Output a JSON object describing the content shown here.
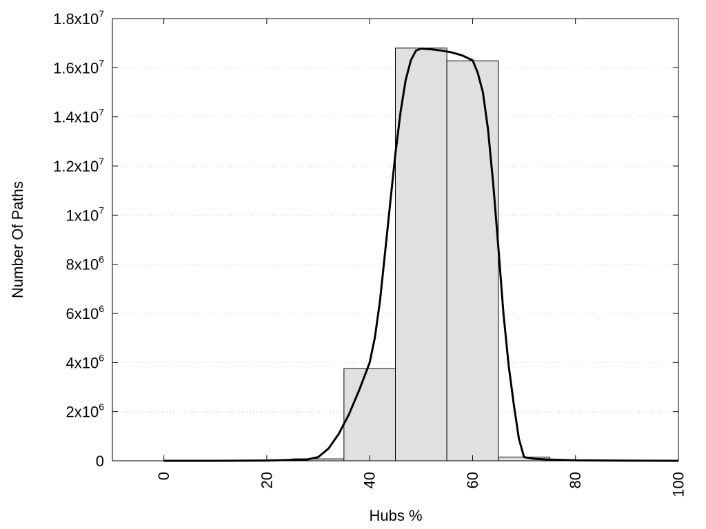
{
  "chart_data": {
    "type": "bar",
    "title": "",
    "xlabel": "Hubs %",
    "ylabel": "Number Of Paths",
    "xlim": [
      -10,
      100
    ],
    "ylim": [
      0,
      18000000
    ],
    "grid": "horizontal-dotted",
    "x_ticks": [
      {
        "value": 0,
        "label": "0"
      },
      {
        "value": 20,
        "label": "20"
      },
      {
        "value": 40,
        "label": "40"
      },
      {
        "value": 60,
        "label": "60"
      },
      {
        "value": 80,
        "label": "80"
      },
      {
        "value": 100,
        "label": "100"
      }
    ],
    "y_ticks": [
      {
        "value": 0,
        "mant": "0",
        "exp": ""
      },
      {
        "value": 2000000,
        "mant": "2x10",
        "exp": "6"
      },
      {
        "value": 4000000,
        "mant": "4x10",
        "exp": "6"
      },
      {
        "value": 6000000,
        "mant": "6x10",
        "exp": "6"
      },
      {
        "value": 8000000,
        "mant": "8x10",
        "exp": "6"
      },
      {
        "value": 10000000,
        "mant": "1x10",
        "exp": "7"
      },
      {
        "value": 12000000,
        "mant": "1.2x10",
        "exp": "7"
      },
      {
        "value": 14000000,
        "mant": "1.4x10",
        "exp": "7"
      },
      {
        "value": 16000000,
        "mant": "1.6x10",
        "exp": "7"
      },
      {
        "value": 18000000,
        "mant": "1.8x10",
        "exp": "7"
      }
    ],
    "bars": [
      {
        "x0": -5,
        "x1": 5,
        "value": 0
      },
      {
        "x0": 5,
        "x1": 15,
        "value": 0
      },
      {
        "x0": 15,
        "x1": 25,
        "value": 5000
      },
      {
        "x0": 25,
        "x1": 35,
        "value": 80000
      },
      {
        "x0": 35,
        "x1": 45,
        "value": 3750000
      },
      {
        "x0": 45,
        "x1": 55,
        "value": 16800000
      },
      {
        "x0": 55,
        "x1": 65,
        "value": 16280000
      },
      {
        "x0": 65,
        "x1": 75,
        "value": 150000
      },
      {
        "x0": 75,
        "x1": 85,
        "value": 5000
      },
      {
        "x0": 85,
        "x1": 95,
        "value": 0
      }
    ],
    "bar_fill": "#e0e0e0",
    "bar_stroke": "#000000",
    "curve_color": "#000000",
    "curve": [
      [
        0,
        0
      ],
      [
        10,
        0
      ],
      [
        20,
        10000
      ],
      [
        25,
        40000
      ],
      [
        28,
        60000
      ],
      [
        30,
        150000
      ],
      [
        32,
        500000
      ],
      [
        34,
        1100000
      ],
      [
        36,
        1900000
      ],
      [
        38,
        2900000
      ],
      [
        40,
        4000000
      ],
      [
        41,
        5000000
      ],
      [
        42,
        6500000
      ],
      [
        43,
        8500000
      ],
      [
        44,
        10500000
      ],
      [
        45,
        12500000
      ],
      [
        46,
        14200000
      ],
      [
        47,
        15500000
      ],
      [
        48,
        16300000
      ],
      [
        49,
        16700000
      ],
      [
        50,
        16780000
      ],
      [
        52,
        16750000
      ],
      [
        54,
        16700000
      ],
      [
        56,
        16620000
      ],
      [
        58,
        16500000
      ],
      [
        60,
        16300000
      ],
      [
        61,
        15800000
      ],
      [
        62,
        15000000
      ],
      [
        63,
        13500000
      ],
      [
        64,
        11300000
      ],
      [
        65,
        8700000
      ],
      [
        66,
        6000000
      ],
      [
        67,
        3900000
      ],
      [
        68,
        2300000
      ],
      [
        69,
        900000
      ],
      [
        70,
        150000
      ],
      [
        72,
        80000
      ],
      [
        75,
        50000
      ],
      [
        80,
        20000
      ],
      [
        90,
        5000
      ],
      [
        100,
        0
      ]
    ]
  }
}
